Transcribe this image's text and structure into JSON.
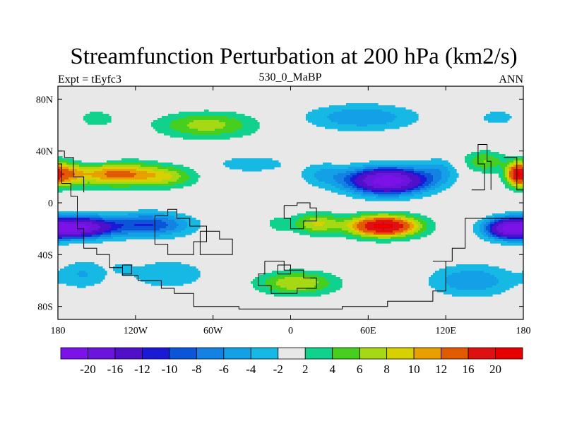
{
  "chart_data": {
    "type": "heatmap",
    "title": "Streamfunction Perturbation at 200 hPa (km2/s)",
    "left_label": "Expt = tEyfc3",
    "center_label": "530_0_MaBP",
    "right_label": "ANN",
    "x": {
      "name": "longitude",
      "range": [
        -180,
        180
      ],
      "ticks": [
        -180,
        -120,
        -60,
        0,
        60,
        120,
        180
      ],
      "tick_labels": [
        "180",
        "120W",
        "60W",
        "0",
        "60E",
        "120E",
        "180"
      ]
    },
    "y": {
      "name": "latitude",
      "range": [
        -90,
        90
      ],
      "ticks": [
        80,
        40,
        0,
        -40,
        -80
      ],
      "tick_labels": [
        "80N",
        "40N",
        "0",
        "40S",
        "80S"
      ]
    },
    "colorbar": {
      "levels": [
        -20,
        -16,
        -12,
        -10,
        -8,
        -6,
        -4,
        -2,
        2,
        4,
        6,
        8,
        10,
        12,
        16,
        20
      ],
      "labels": [
        "-20",
        "-16",
        "-12",
        "-10",
        "-8",
        "-6",
        "-4",
        "-2",
        "2",
        "4",
        "6",
        "8",
        "10",
        "12",
        "16",
        "20"
      ],
      "colors": [
        "#7b12e8",
        "#6a14dc",
        "#5010c8",
        "#1a1ad6",
        "#0a55d8",
        "#1482e2",
        "#14a0e6",
        "#16b8e4",
        "#e8e8e8",
        "#10d28c",
        "#46cf1e",
        "#a6d814",
        "#d8d000",
        "#e8a000",
        "#e05a00",
        "#e01010",
        "#e80000"
      ]
    },
    "features": [
      {
        "kind": "high",
        "name": "north-pacific-high",
        "lon": -130,
        "lat": 22,
        "peak": 14
      },
      {
        "kind": "low",
        "name": "south-pacific-low",
        "lon": -160,
        "lat": -20,
        "peak": -20
      },
      {
        "kind": "low",
        "name": "asia-low",
        "lon": 75,
        "lat": 18,
        "peak": -20
      },
      {
        "kind": "high",
        "name": "indian-ocean-high",
        "lon": 75,
        "lat": -18,
        "peak": 20
      },
      {
        "kind": "high",
        "name": "arctic-high",
        "lon": -60,
        "lat": 62,
        "peak": 6
      },
      {
        "kind": "low",
        "name": "north-atlantic-low",
        "lon": 40,
        "lat": 68,
        "peak": -6
      },
      {
        "kind": "high",
        "name": "southern-ocean-high",
        "lon": 5,
        "lat": -62,
        "peak": 8
      }
    ]
  }
}
